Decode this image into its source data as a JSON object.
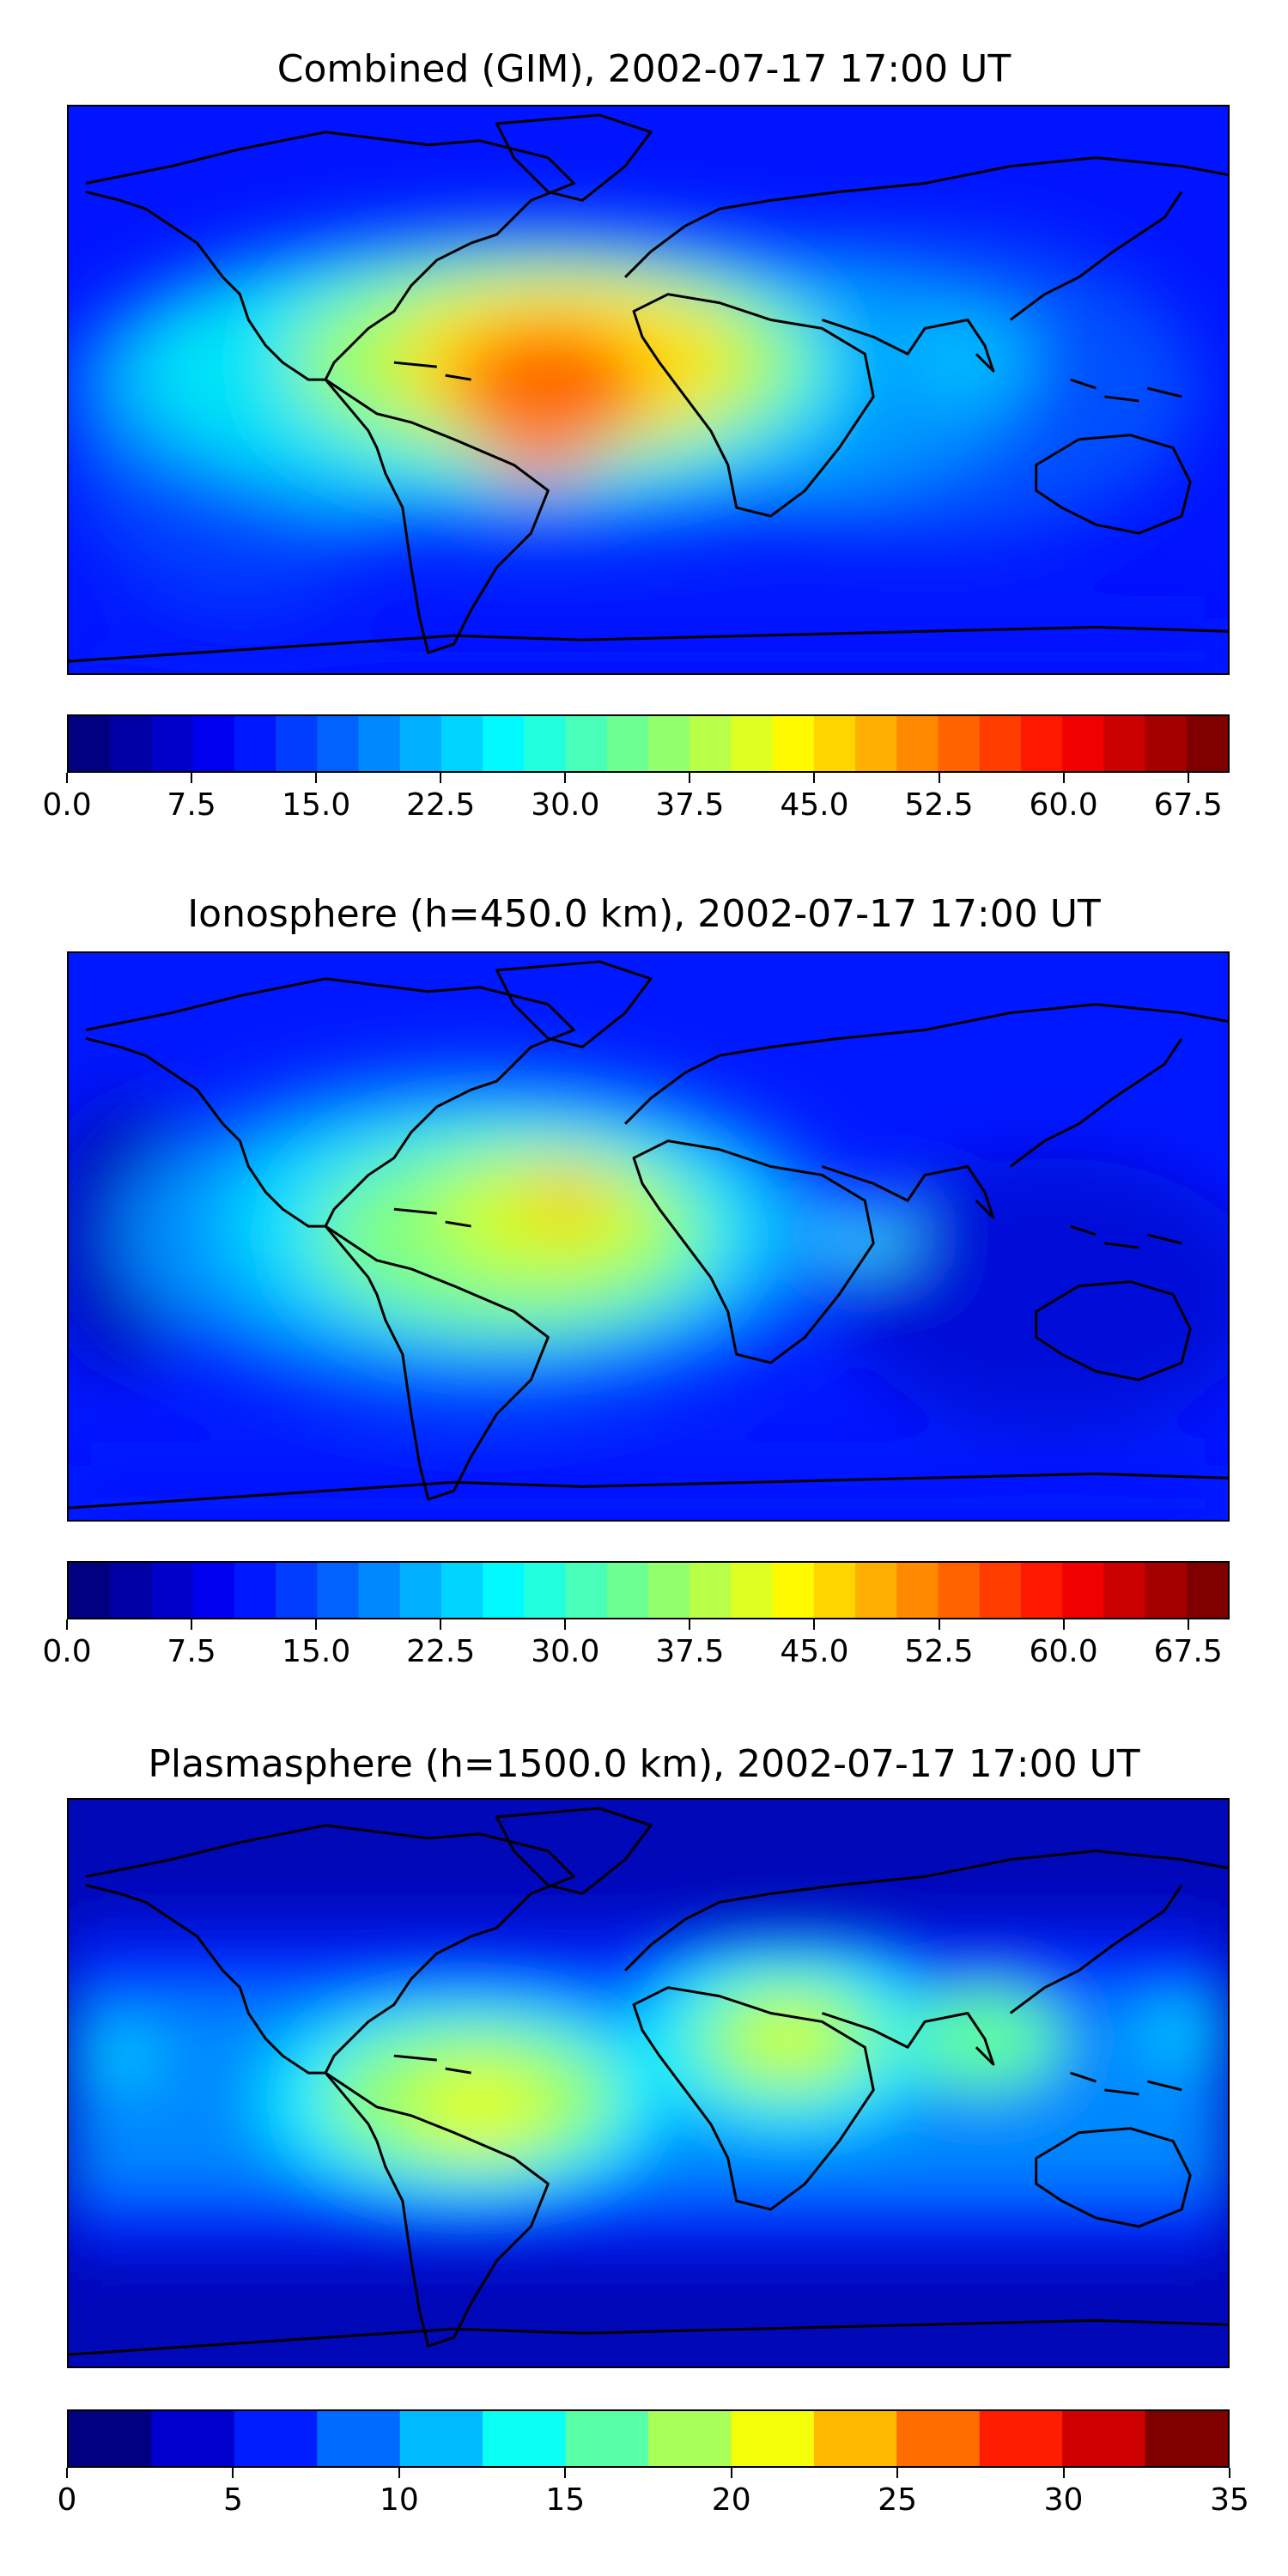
{
  "panels": [
    {
      "title": "Combined (GIM), 2002-07-17 17:00 UT",
      "colorbar": {
        "levels": 28,
        "min": 0.0,
        "max": 70.0,
        "tick_labels": [
          "0.0",
          "7.5",
          "15.0",
          "22.5",
          "30.0",
          "37.5",
          "45.0",
          "52.5",
          "60.0",
          "67.5"
        ]
      }
    },
    {
      "title": "Ionosphere  (h=450.0 km), 2002-07-17 17:00 UT",
      "colorbar": {
        "levels": 28,
        "min": 0.0,
        "max": 70.0,
        "tick_labels": [
          "0.0",
          "7.5",
          "15.0",
          "22.5",
          "30.0",
          "37.5",
          "45.0",
          "52.5",
          "60.0",
          "67.5"
        ]
      }
    },
    {
      "title": "Plasmasphere (h=1500.0 km), 2002-07-17 17:00 UT",
      "colorbar": {
        "levels": 14,
        "min": 0,
        "max": 35,
        "tick_labels": [
          "0",
          "5",
          "10",
          "15",
          "20",
          "25",
          "30",
          "35"
        ]
      }
    }
  ],
  "colormap": "jet"
}
